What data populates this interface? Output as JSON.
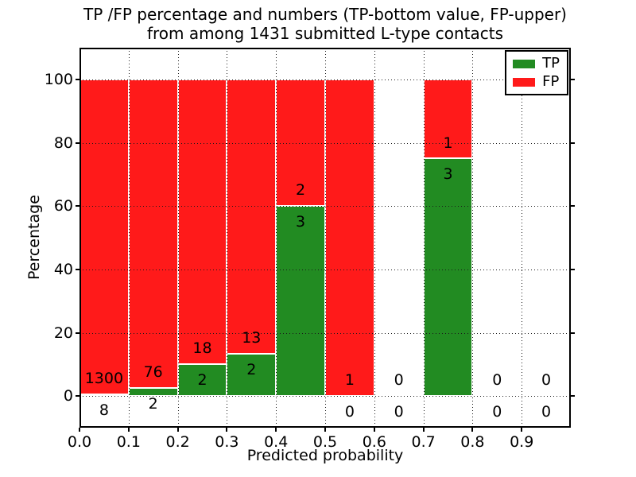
{
  "chart_data": {
    "type": "bar",
    "stacked": true,
    "title": "TP /FP percentage and numbers (TP-bottom value, FP-upper)\nfrom among 1431 submitted L-type contacts",
    "xlabel": "Predicted probability",
    "ylabel": "Percentage",
    "total_submitted_contacts": 1431,
    "grid": true,
    "legend_position": "upper right",
    "xlim": [
      0.0,
      1.0
    ],
    "ylim": [
      -10,
      110
    ],
    "series": [
      {
        "name": "TP",
        "color": "#228b22"
      },
      {
        "name": "FP",
        "color": "#ff1a1a"
      }
    ],
    "bins": [
      {
        "x0": 0.0,
        "x1": 0.1,
        "tp": 8,
        "fp": 1300,
        "tp_pct": 0.61
      },
      {
        "x0": 0.1,
        "x1": 0.2,
        "tp": 2,
        "fp": 76,
        "tp_pct": 2.56
      },
      {
        "x0": 0.2,
        "x1": 0.3,
        "tp": 2,
        "fp": 18,
        "tp_pct": 10.0
      },
      {
        "x0": 0.3,
        "x1": 0.4,
        "tp": 2,
        "fp": 13,
        "tp_pct": 13.33
      },
      {
        "x0": 0.4,
        "x1": 0.5,
        "tp": 3,
        "fp": 2,
        "tp_pct": 60.0
      },
      {
        "x0": 0.5,
        "x1": 0.6,
        "tp": 0,
        "fp": 1,
        "tp_pct": 0.0
      },
      {
        "x0": 0.6,
        "x1": 0.7,
        "tp": 0,
        "fp": 0,
        "tp_pct": null
      },
      {
        "x0": 0.7,
        "x1": 0.8,
        "tp": 3,
        "fp": 1,
        "tp_pct": 75.0
      },
      {
        "x0": 0.8,
        "x1": 0.9,
        "tp": 0,
        "fp": 0,
        "tp_pct": null
      },
      {
        "x0": 0.9,
        "x1": 1.0,
        "tp": 0,
        "fp": 0,
        "tp_pct": null
      }
    ],
    "xticks": [
      {
        "value": 0.0,
        "label": "0.0"
      },
      {
        "value": 0.1,
        "label": "0.1"
      },
      {
        "value": 0.2,
        "label": "0.2"
      },
      {
        "value": 0.3,
        "label": "0.3"
      },
      {
        "value": 0.4,
        "label": "0.4"
      },
      {
        "value": 0.5,
        "label": "0.5"
      },
      {
        "value": 0.6,
        "label": "0.6"
      },
      {
        "value": 0.7,
        "label": "0.7"
      },
      {
        "value": 0.8,
        "label": "0.8"
      },
      {
        "value": 0.9,
        "label": "0.9"
      }
    ],
    "yticks": [
      {
        "value": 0,
        "label": "0"
      },
      {
        "value": 20,
        "label": "20"
      },
      {
        "value": 40,
        "label": "40"
      },
      {
        "value": 60,
        "label": "60"
      },
      {
        "value": 80,
        "label": "80"
      },
      {
        "value": 100,
        "label": "100"
      }
    ]
  }
}
